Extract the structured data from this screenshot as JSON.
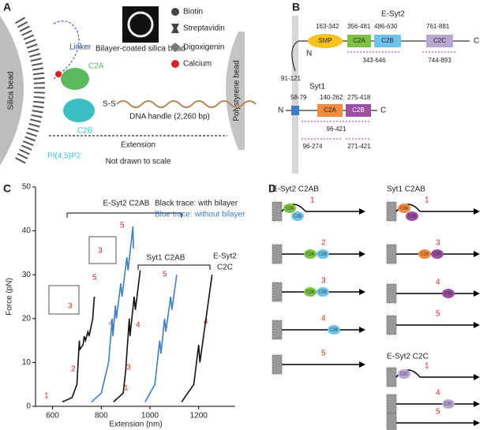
{
  "panel_a": {
    "label": "A",
    "linker": "Linker",
    "c2a": "C2A",
    "c2b": "C2B",
    "silica": "Silica bead",
    "ss": "S-S",
    "dna": "DNA handle (2,260 bp)",
    "polystyrene": "Polystyrene bead",
    "extension": "Extension",
    "note": "Not drawn to scale",
    "pip": "PI(4,5)P2",
    "bead_caption": "Bilayer-coated silica bead",
    "legend": [
      "Biotin",
      "Streptavidin",
      "Digoxigenin",
      "Calcium"
    ]
  },
  "panel_b": {
    "label": "B",
    "esyt2": {
      "name": "E-Syt2",
      "ranges": [
        "163-342",
        "356-481",
        "486-630",
        "761-881"
      ],
      "domains": [
        "SMP",
        "C2A",
        "C2B",
        "C2C"
      ],
      "c": "C",
      "n": "N",
      "tm": "91-121",
      "constructs": [
        "343-646",
        "744-893"
      ]
    },
    "syt1": {
      "name": "Syt1",
      "ranges": [
        "58-79",
        "140-262",
        "275-418"
      ],
      "domains": [
        "C2A",
        "C2B"
      ],
      "n": "N",
      "c": "C",
      "constructs": [
        "96-421",
        "96-274",
        "271-421"
      ]
    }
  },
  "chart_data": {
    "type": "line",
    "label": "C",
    "xlabel": "Extension (nm)",
    "ylabel": "Force (pN)",
    "xlim": [
      530,
      1350
    ],
    "xticks": [
      600,
      800,
      1000,
      1200
    ],
    "ylim": [
      0,
      50
    ],
    "yticks": [
      0,
      10,
      20,
      30,
      40,
      50
    ],
    "annotations": [
      "E-Syt2 C2AB",
      "Syt1 C2AB",
      "E-Syt2",
      "C2C",
      "Black trace: with bilayer",
      "Blue trace: without bilayer"
    ],
    "states": [
      "1",
      "2",
      "3",
      "4",
      "5"
    ],
    "series": [
      {
        "color": "#111111",
        "x": [
          640,
          680,
          700,
          705,
          710,
          712,
          725,
          730,
          735,
          745,
          750,
          765,
          770,
          772
        ],
        "values": [
          1,
          2,
          5,
          10,
          15,
          13,
          14,
          16,
          15,
          17,
          16,
          20,
          24,
          25
        ]
      },
      {
        "color": "#3d7cc9",
        "x": [
          760,
          800,
          830,
          845,
          848,
          858,
          862,
          880,
          885,
          905,
          910,
          930,
          932
        ],
        "values": [
          1,
          3,
          10,
          20,
          16,
          23,
          20,
          28,
          25,
          34,
          31,
          41,
          36
        ]
      },
      {
        "color": "#111111",
        "x": [
          850,
          890,
          900,
          915,
          918,
          935,
          940,
          960
        ],
        "values": [
          1,
          3,
          8,
          20,
          16,
          25,
          22,
          31
        ]
      },
      {
        "color": "#3d7cc9",
        "x": [
          980,
          1020,
          1040,
          1045,
          1060,
          1065,
          1085,
          1090,
          1110
        ],
        "values": [
          1,
          5,
          15,
          12,
          20,
          17,
          25,
          22,
          30
        ]
      },
      {
        "color": "#111111",
        "x": [
          1130,
          1180,
          1200,
          1205,
          1230,
          1255
        ],
        "values": [
          1,
          5,
          14,
          10,
          20,
          30
        ]
      }
    ]
  },
  "panel_d": {
    "label": "D",
    "groups": [
      {
        "title": "E-Syt2 C2AB",
        "states": [
          {
            "n": "1",
            "domains": [
              "C2A",
              "C2B"
            ]
          },
          {
            "n": "2",
            "domains": [
              "C2A",
              "C2B"
            ]
          },
          {
            "n": "3",
            "domains": [
              "C2A",
              "C2B"
            ]
          },
          {
            "n": "4",
            "domains": [
              "C2B"
            ]
          },
          {
            "n": "5",
            "domains": []
          }
        ]
      },
      {
        "title": "Syt1 C2AB",
        "states": [
          {
            "n": "1",
            "domains": [
              "C2A",
              "C2B"
            ]
          },
          {
            "n": "3",
            "domains": [
              "C2A",
              "C2B"
            ]
          },
          {
            "n": "4",
            "domains": [
              "C2B"
            ]
          },
          {
            "n": "5",
            "domains": []
          }
        ]
      },
      {
        "title": "E-Syt2 C2C",
        "states": [
          {
            "n": "1",
            "domains": [
              "C2C"
            ]
          },
          {
            "n": "4",
            "domains": [
              "C2C"
            ]
          },
          {
            "n": "5",
            "domains": []
          }
        ]
      }
    ]
  }
}
